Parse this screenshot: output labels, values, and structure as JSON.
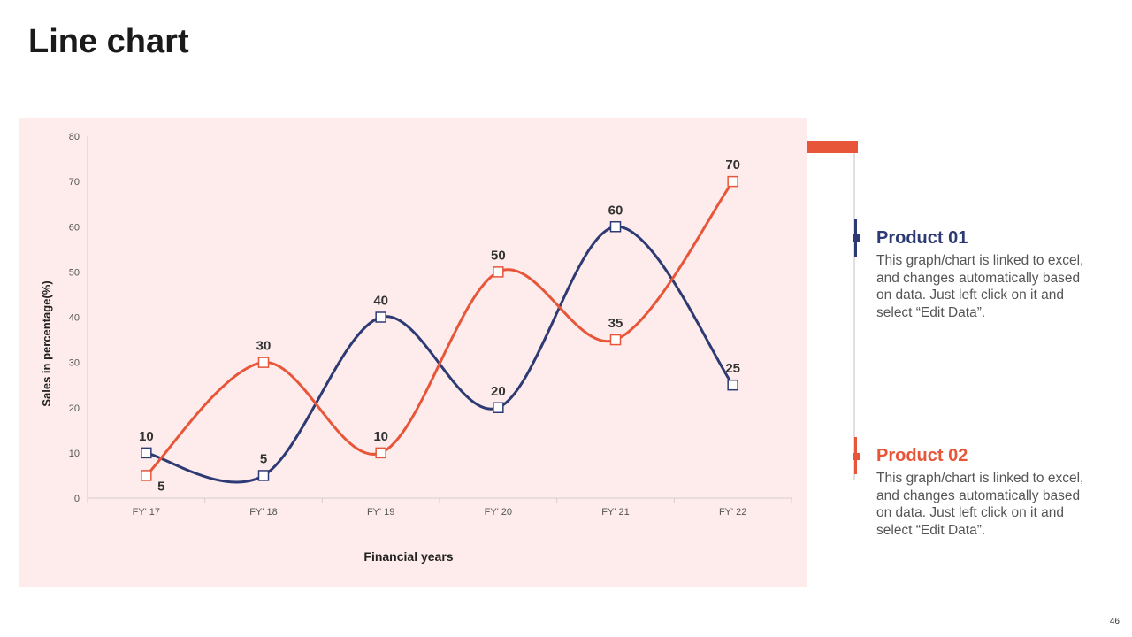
{
  "title": "Line chart",
  "page_number": "46",
  "colors": {
    "product01": "#2e3a73",
    "product02": "#e8563a",
    "panel_bg": "#fdeceb",
    "accent": "#e8563a"
  },
  "legend": [
    {
      "name": "Product 01",
      "description": "This graph/chart is linked to excel, and changes automatically based on data. Just left click on it and select “Edit Data”."
    },
    {
      "name": "Product 02",
      "description": "This graph/chart is linked to excel, and changes automatically based on data. Just left click on it and select “Edit Data”."
    }
  ],
  "chart_data": {
    "type": "line",
    "title": "",
    "xlabel": "Financial years",
    "ylabel": "Sales in percentage(%)",
    "categories": [
      "FY' 17",
      "FY' 18",
      "FY' 19",
      "FY' 20",
      "FY' 21",
      "FY' 22"
    ],
    "ylim": [
      0,
      80
    ],
    "yticks": [
      0,
      10,
      20,
      30,
      40,
      50,
      60,
      70,
      80
    ],
    "smooth": true,
    "series": [
      {
        "name": "Product 01",
        "color": "#2e3a73",
        "values": [
          10,
          5,
          40,
          20,
          60,
          25
        ]
      },
      {
        "name": "Product 02",
        "color": "#e8563a",
        "values": [
          5,
          30,
          10,
          50,
          35,
          70
        ]
      }
    ]
  }
}
